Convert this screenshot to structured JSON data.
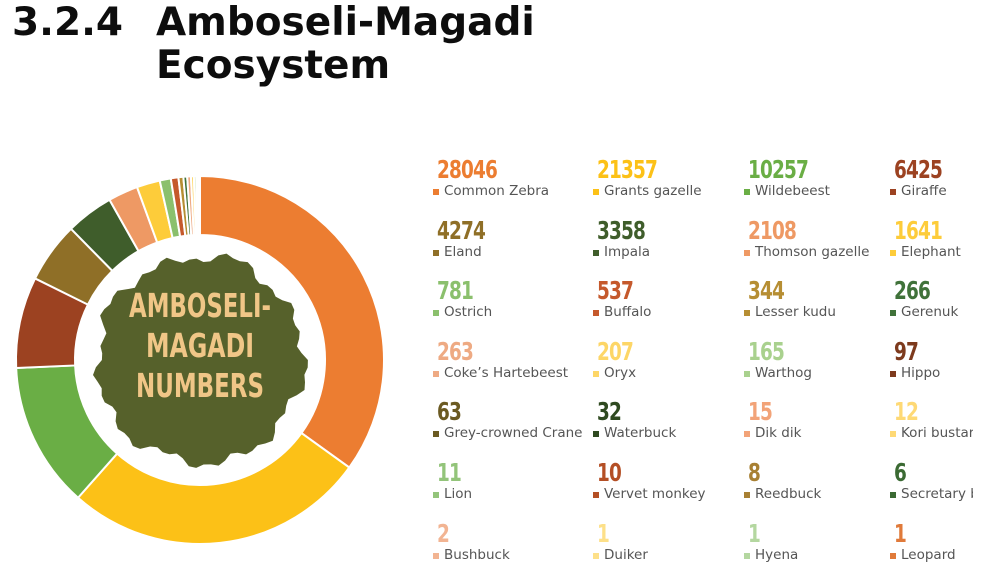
{
  "heading": {
    "number": "3.2.4",
    "title_line1": "Amboseli-Magadi",
    "title_line2": "Ecosystem"
  },
  "center_label": [
    "AMBOSELI-",
    "MAGADI",
    "NUMBERS"
  ],
  "colors": {
    "center_bg": "#56612b",
    "center_text": "#f0c687"
  },
  "chart_data": {
    "type": "pie",
    "categories": [
      "Common Zebra",
      "Grants gazelle",
      "Wildebeest",
      "Giraffe",
      "Eland",
      "Impala",
      "Thomson gazelle",
      "Elephant",
      "Ostrich",
      "Buffalo",
      "Lesser kudu",
      "Gerenuk",
      "Coke’s Hartebeest",
      "Oryx",
      "Warthog",
      "Hippo",
      "Grey-crowned Crane",
      "Waterbuck",
      "Dik dik",
      "Kori bustard",
      "Lion",
      "Vervet monkey",
      "Reedbuck",
      "Secretary bird",
      "Bushbuck",
      "Duiker",
      "Hyena",
      "Leopard"
    ],
    "values": [
      28046,
      21357,
      10257,
      6425,
      4274,
      3358,
      2108,
      1641,
      781,
      537,
      344,
      266,
      263,
      207,
      165,
      97,
      63,
      32,
      15,
      12,
      11,
      10,
      8,
      6,
      2,
      1,
      1,
      1
    ],
    "display_values": [
      "28046",
      "21357",
      "10257",
      "6425",
      "4274",
      "3358",
      "2108",
      "1641",
      "781",
      "537",
      "344",
      "266",
      "263",
      "207",
      "165",
      "97",
      "63",
      "32",
      "15",
      "12",
      "11",
      "10",
      "8",
      "6",
      "2",
      "1",
      "1",
      "1"
    ],
    "colors": [
      "#ec7d31",
      "#fcc117",
      "#6aae45",
      "#9c4221",
      "#8f6f27",
      "#3f5d2b",
      "#ee9964",
      "#fdcc3a",
      "#8bc06d",
      "#c5592c",
      "#b68e33",
      "#40723a",
      "#eeaa83",
      "#fdd667",
      "#a9d18e",
      "#7d3a1d",
      "#6b5a22",
      "#2f4a20",
      "#f2a378",
      "#fed975",
      "#93c47a",
      "#b44f25",
      "#a88033",
      "#3b6a33",
      "#f2b492",
      "#fde089",
      "#b4d7a0",
      "#e07a3a"
    ],
    "labels_printed": [
      "Common Zebra",
      "Grants gazelle",
      "Wildebeest",
      "Giraffe",
      "Eland",
      "Impala",
      "Thomson gazelle",
      "Elephant",
      "Ostrich",
      "Buffalo",
      "Lesser kudu",
      "Gerenuk",
      "Coke’s Hartebeest",
      "Oryx",
      "Warthog",
      "Hippo",
      "Grey-crowned Crane",
      "Waterbuck",
      "Dik dik",
      "Kori bustar",
      "Lion",
      "Vervet monkey",
      "Reedbuck",
      "Secretary b",
      "Bushbuck",
      "Duiker",
      "Hyena",
      "Leopard"
    ]
  }
}
